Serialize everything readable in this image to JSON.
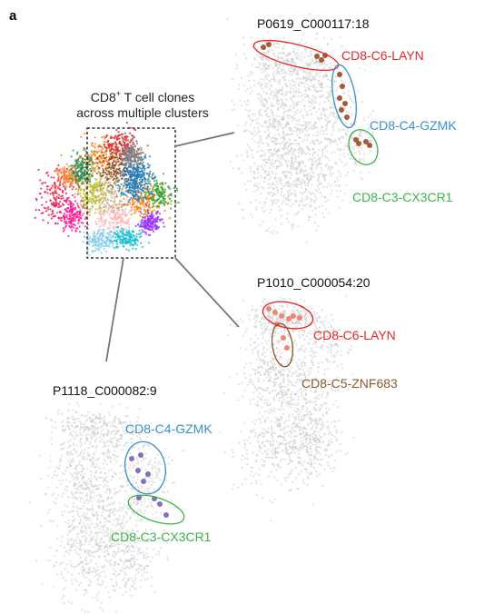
{
  "panel_label": "a",
  "overview": {
    "title_line1_main": "CD8",
    "title_line1_sup": "+",
    "title_line1_rest": " T cell clones",
    "title_line2": "across multiple clusters",
    "cluster_colors": [
      "#e6194b",
      "#f58231",
      "#8b4513",
      "#2e8b57",
      "#1f77b4",
      "#9b30ff",
      "#ff1493",
      "#17becf",
      "#bcbd22",
      "#2ca02c",
      "#ff7f0e",
      "#d62728",
      "#ffb6c1",
      "#87ceeb",
      "#c2b280",
      "#7f7f7f"
    ]
  },
  "clones": [
    {
      "id": "P0619_C000117:18",
      "clusters": [
        {
          "label": "CD8-C6-LAYN",
          "color": "#e8262a"
        },
        {
          "label": "CD8-C4-GZMK",
          "color": "#3a8fd0"
        },
        {
          "label": "CD8-C3-CX3CR1",
          "color": "#3ab34a"
        }
      ],
      "dot_color": "#a0522d"
    },
    {
      "id": "P1010_C000054:20",
      "clusters": [
        {
          "label": "CD8-C6-LAYN",
          "color": "#e8262a"
        },
        {
          "label": "CD8-C5-ZNF683",
          "color": "#8b5a2b"
        }
      ],
      "dot_color": "#f08070"
    },
    {
      "id": "P1118_C000082:9",
      "clusters": [
        {
          "label": "CD8-C4-GZMK",
          "color": "#3a8fd0"
        },
        {
          "label": "CD8-C3-CX3CR1",
          "color": "#3ab34a"
        }
      ],
      "dot_color": "#7b68b8"
    }
  ],
  "background_color": "#c8c8c8"
}
